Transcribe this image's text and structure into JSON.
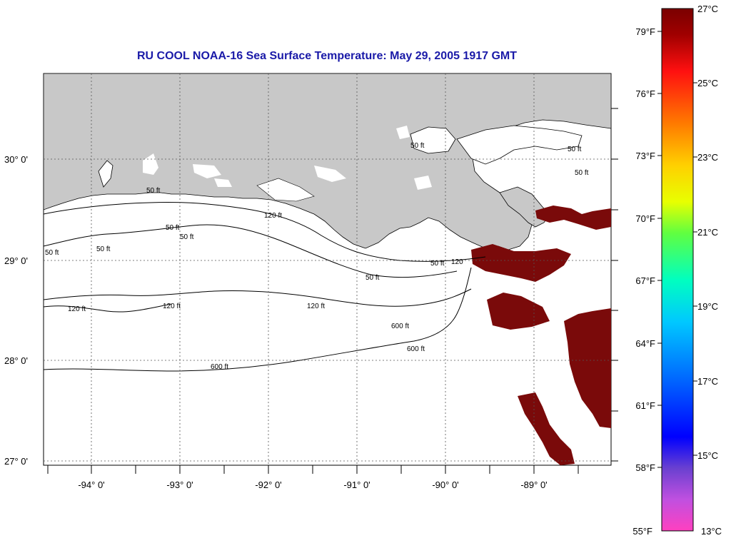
{
  "title": "RU COOL  NOAA-16  Sea Surface Temperature:  May 29, 2005 1917 GMT",
  "map": {
    "longitude_labels": [
      "-94° 0'",
      "-93° 0'",
      "-92° 0'",
      "-91° 0'",
      "-90° 0'",
      "-89° 0'"
    ],
    "latitude_labels": [
      "30° 0'",
      "29° 0'",
      "28° 0'",
      "27° 0'"
    ],
    "contour_labels": [
      "50 ft",
      "50 ft",
      "50 ft",
      "50 ft",
      "50 ft",
      "50 ft",
      "50 ft",
      "50 ft",
      "50 ft",
      "50 ft",
      "120 ft",
      "120 ft",
      "120 ft",
      "120 ft",
      "120",
      "600 ft",
      "600 ft",
      "600 ft"
    ],
    "colors": {
      "land": "#c8c8c8",
      "ocean": "#ffffff",
      "warm_patch": "#7a0a0a",
      "grid": "#555555"
    }
  },
  "colorbar": {
    "fahrenheit_labels": [
      "79°F",
      "76°F",
      "73°F",
      "70°F",
      "67°F",
      "64°F",
      "61°F",
      "58°F",
      "55°F"
    ],
    "celsius_labels": [
      "27°C",
      "25°C",
      "23°C",
      "21°C",
      "19°C",
      "17°C",
      "15°C",
      "13°C"
    ]
  }
}
